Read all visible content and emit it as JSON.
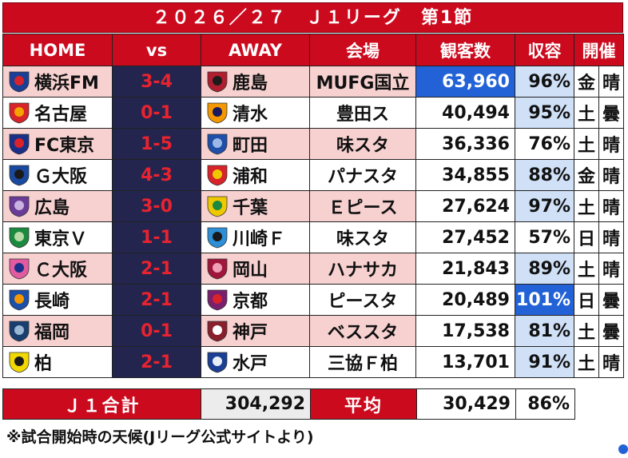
{
  "title": "２０２６／２７　Ｊ１リーグ　第1節",
  "headers": [
    "HOME",
    "vs",
    "AWAY",
    "会場",
    "観客数",
    "収容",
    "開催"
  ],
  "matches": [
    {
      "home": "横浜FM",
      "score": "3-4",
      "away": "鹿島",
      "venue": "MUFG国立",
      "attendance": "63,960",
      "capacity": "96%",
      "day": "金",
      "weather": "晴",
      "home_logo": "yokohama-fm-crest",
      "away_logo": "kashima-crest"
    },
    {
      "home": "名古屋",
      "score": "0-1",
      "away": "清水",
      "venue": "豊田ス",
      "attendance": "40,494",
      "capacity": "95%",
      "day": "土",
      "weather": "曇",
      "home_logo": "nagoya-crest",
      "away_logo": "shimizu-crest"
    },
    {
      "home": "FC東京",
      "score": "1-5",
      "away": "町田",
      "venue": "味スタ",
      "attendance": "36,336",
      "capacity": "76%",
      "day": "土",
      "weather": "晴",
      "home_logo": "fc-tokyo-crest",
      "away_logo": "machida-crest"
    },
    {
      "home": "Ｇ大阪",
      "score": "4-3",
      "away": "浦和",
      "venue": "パナスタ",
      "attendance": "34,855",
      "capacity": "88%",
      "day": "金",
      "weather": "晴",
      "home_logo": "gamba-osaka-crest",
      "away_logo": "urawa-crest"
    },
    {
      "home": "広島",
      "score": "3-0",
      "away": "千葉",
      "venue": "Ｅピース",
      "attendance": "27,624",
      "capacity": "97%",
      "day": "土",
      "weather": "晴",
      "home_logo": "hiroshima-crest",
      "away_logo": "chiba-crest"
    },
    {
      "home": "東京Ｖ",
      "score": "1-1",
      "away": "川崎Ｆ",
      "venue": "味スタ",
      "attendance": "27,452",
      "capacity": "57%",
      "day": "日",
      "weather": "晴",
      "home_logo": "tokyo-verdy-crest",
      "away_logo": "kawasaki-crest"
    },
    {
      "home": "Ｃ大阪",
      "score": "2-1",
      "away": "岡山",
      "venue": "ハナサカ",
      "attendance": "21,843",
      "capacity": "89%",
      "day": "土",
      "weather": "晴",
      "home_logo": "cerezo-osaka-crest",
      "away_logo": "okayama-crest"
    },
    {
      "home": "長崎",
      "score": "2-1",
      "away": "京都",
      "venue": "ピースタ",
      "attendance": "20,489",
      "capacity": "101%",
      "day": "日",
      "weather": "曇",
      "home_logo": "nagasaki-crest",
      "away_logo": "kyoto-crest"
    },
    {
      "home": "福岡",
      "score": "0-1",
      "away": "神戸",
      "venue": "ベススタ",
      "attendance": "17,538",
      "capacity": "81%",
      "day": "土",
      "weather": "曇",
      "home_logo": "fukuoka-crest",
      "away_logo": "kobe-crest"
    },
    {
      "home": "柏",
      "score": "2-1",
      "away": "水戸",
      "venue": "三協Ｆ柏",
      "attendance": "13,701",
      "capacity": "91%",
      "day": "土",
      "weather": "晴",
      "home_logo": "kashiwa-crest",
      "away_logo": "mito-crest"
    }
  ],
  "summary": {
    "total_label": "Ｊ１合計",
    "total_value": "304,292",
    "avg_label": "平均",
    "avg_value": "30,429",
    "avg_capacity": "86%"
  },
  "note": "※試合開始時の天候(Jリーグ公式サイトより)",
  "colors": {
    "red": "#cc0a1e",
    "navy": "#23254e",
    "pink": "#f7d0d0",
    "blue_cell": "#cfe0f7",
    "highlight": "#2262d6"
  }
}
